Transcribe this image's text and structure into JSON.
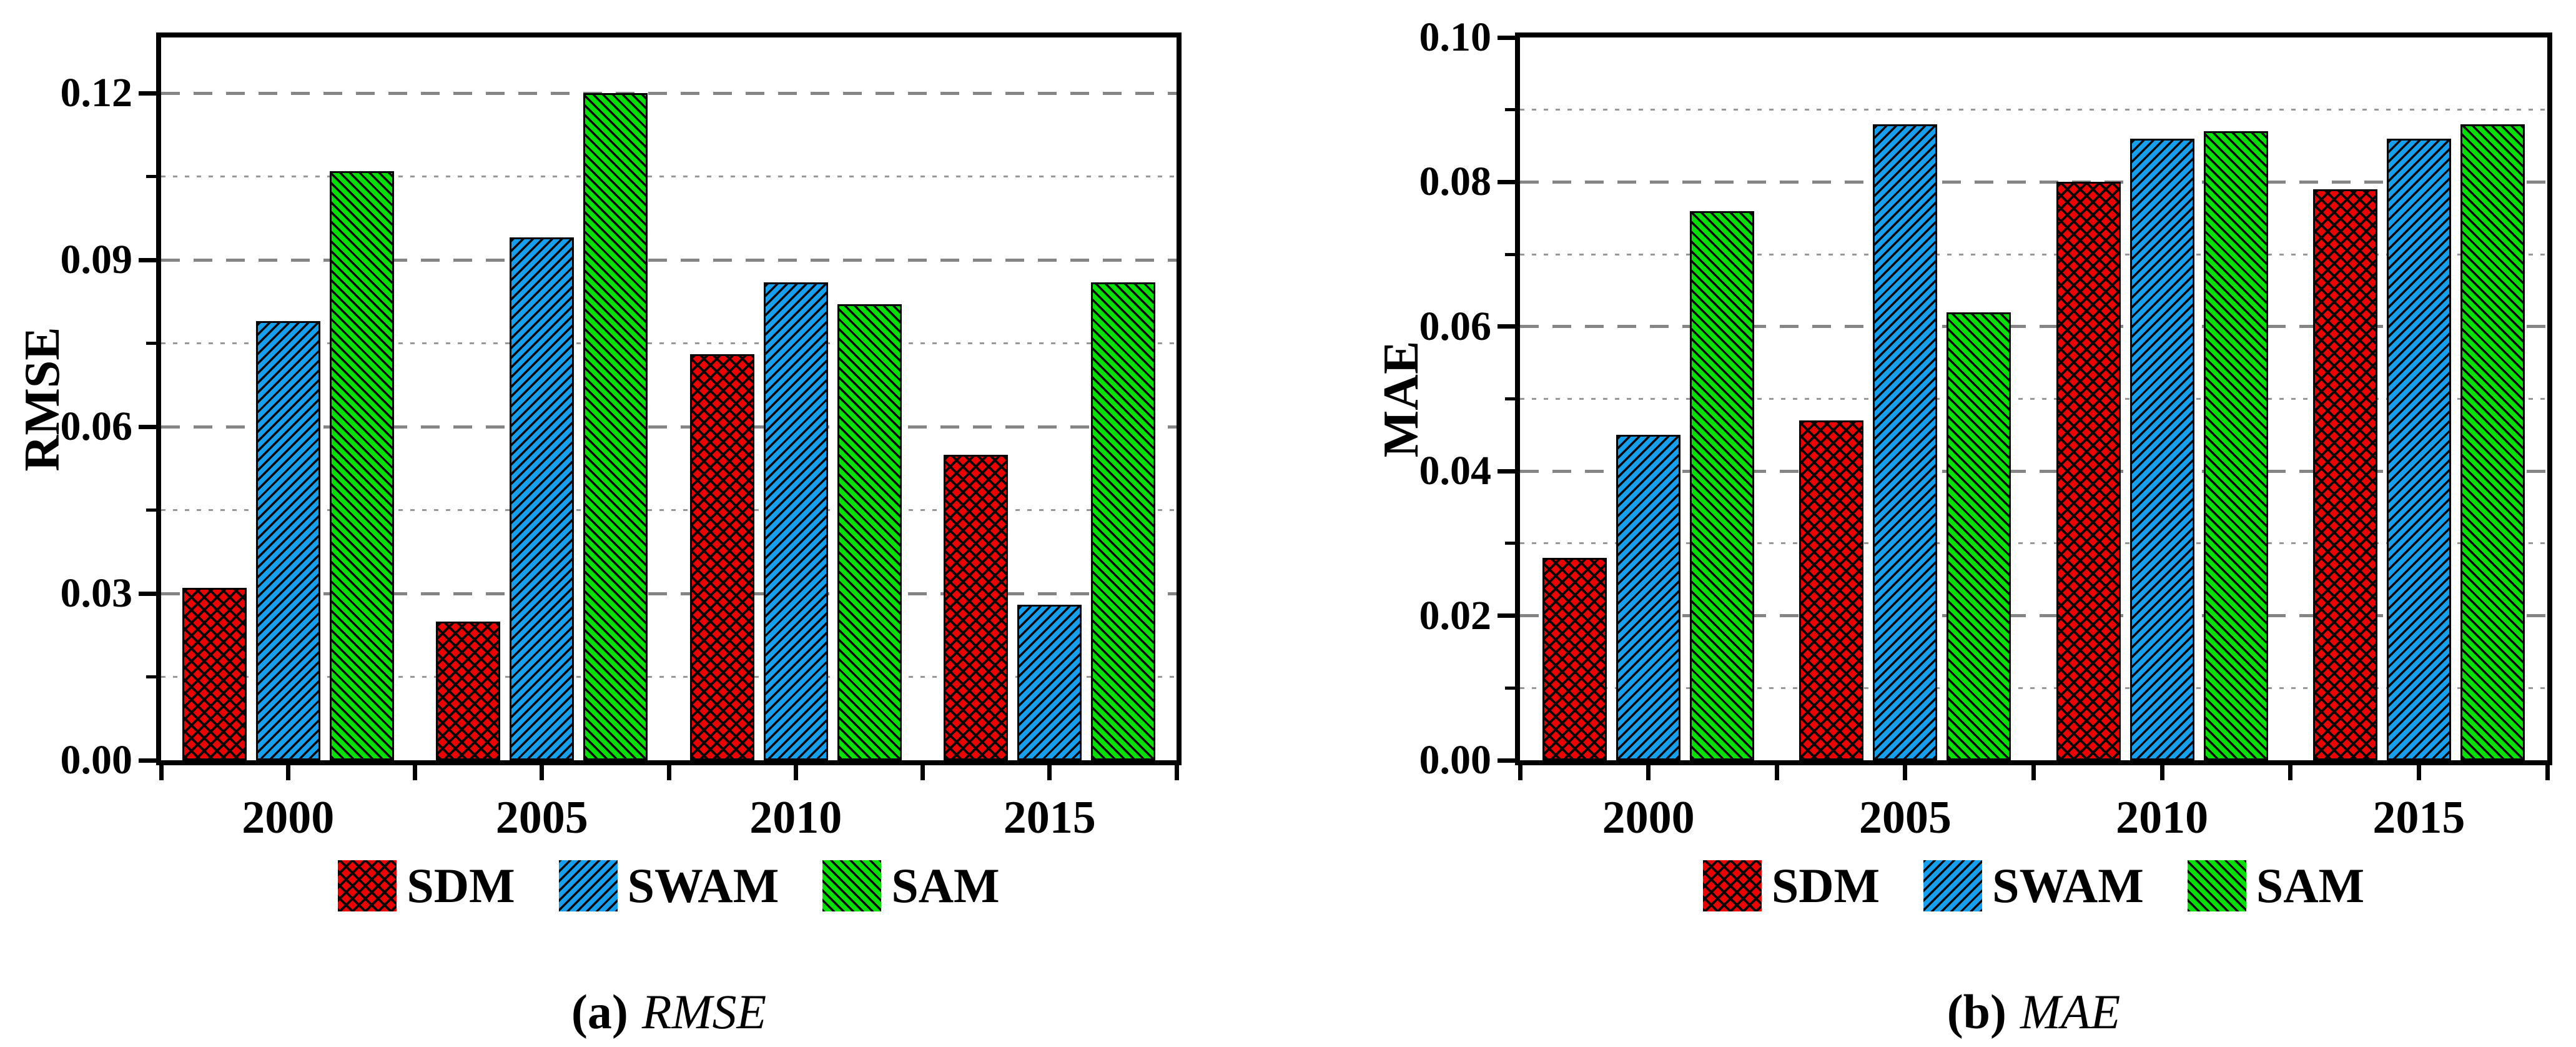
{
  "figure": {
    "background": "#ffffff",
    "panels": [
      {
        "caption_index": "(a)",
        "caption_text": "RMSE"
      },
      {
        "caption_index": "(b)",
        "caption_text": "MAE"
      }
    ]
  },
  "colors": {
    "sdm_red": "#EE0000",
    "swam_blue": "#14A0EE",
    "sam_green": "#00E100",
    "hatch": "#000000",
    "grid_major": "#858585",
    "grid_minor": "#989898",
    "axis": "#000000"
  },
  "chart_data": [
    {
      "type": "bar",
      "title": "(a) RMSE",
      "ylabel": "RMSE",
      "xlabel": "",
      "categories": [
        "2000",
        "2005",
        "2010",
        "2015"
      ],
      "series": [
        {
          "name": "SDM",
          "color": "#EE0000",
          "hatch": "cross",
          "values": [
            0.031,
            0.025,
            0.073,
            0.055
          ]
        },
        {
          "name": "SWAM",
          "color": "#14A0EE",
          "hatch": "forward",
          "values": [
            0.079,
            0.094,
            0.086,
            0.028
          ]
        },
        {
          "name": "SAM",
          "color": "#00E100",
          "hatch": "backward",
          "values": [
            0.106,
            0.12,
            0.082,
            0.086
          ]
        }
      ],
      "ylim": [
        0,
        0.13
      ],
      "yticks": [
        {
          "value": 0,
          "label": "0.00"
        },
        {
          "value": 0.03,
          "label": "0.03"
        },
        {
          "value": 0.06,
          "label": "0.06"
        },
        {
          "value": 0.09,
          "label": "0.09"
        },
        {
          "value": 0.12,
          "label": "0.12"
        }
      ],
      "yticks_minor": [
        0.015,
        0.045,
        0.075,
        0.105
      ],
      "grid": {
        "orientation": "horizontal",
        "major": "dashed",
        "minor": "dotted"
      },
      "legend_position": "bottom"
    },
    {
      "type": "bar",
      "title": "(b) MAE",
      "ylabel": "MAE",
      "xlabel": "",
      "categories": [
        "2000",
        "2005",
        "2010",
        "2015"
      ],
      "series": [
        {
          "name": "SDM",
          "color": "#EE0000",
          "hatch": "cross",
          "values": [
            0.028,
            0.047,
            0.08,
            0.079
          ]
        },
        {
          "name": "SWAM",
          "color": "#14A0EE",
          "hatch": "forward",
          "values": [
            0.045,
            0.088,
            0.086,
            0.086
          ]
        },
        {
          "name": "SAM",
          "color": "#00E100",
          "hatch": "backward",
          "values": [
            0.076,
            0.062,
            0.087,
            0.088
          ]
        }
      ],
      "ylim": [
        0,
        0.1
      ],
      "yticks": [
        {
          "value": 0,
          "label": "0.00"
        },
        {
          "value": 0.02,
          "label": "0.02"
        },
        {
          "value": 0.04,
          "label": "0.04"
        },
        {
          "value": 0.06,
          "label": "0.06"
        },
        {
          "value": 0.08,
          "label": "0.08"
        },
        {
          "value": 0.1,
          "label": "0.10"
        }
      ],
      "yticks_minor": [
        0.01,
        0.03,
        0.05,
        0.07,
        0.09
      ],
      "grid": {
        "orientation": "horizontal",
        "major": "dashed",
        "minor": "dotted"
      },
      "legend_position": "bottom"
    }
  ]
}
